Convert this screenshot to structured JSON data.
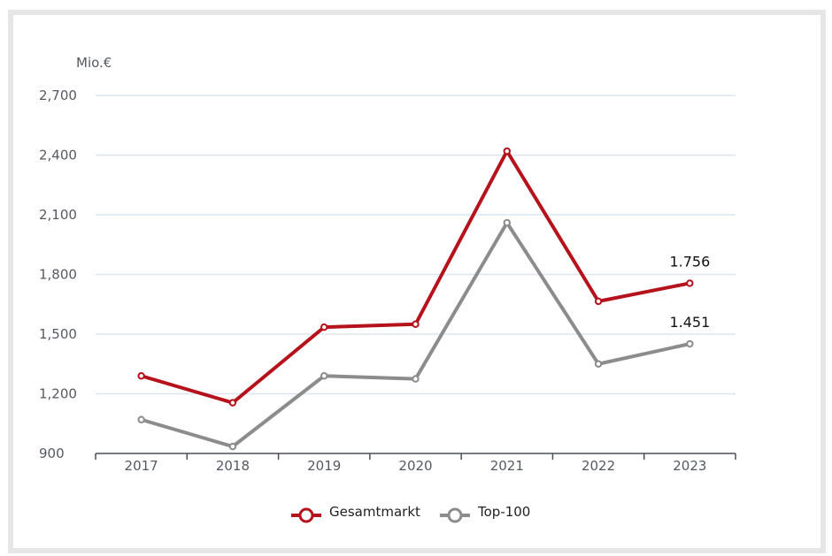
{
  "chart_data": {
    "type": "line",
    "unit_label": "Mio.€",
    "categories": [
      "2017",
      "2018",
      "2019",
      "2020",
      "2021",
      "2022",
      "2023"
    ],
    "ylim": [
      900,
      2700
    ],
    "yticks": [
      900,
      1200,
      1500,
      1800,
      2100,
      2400,
      2700
    ],
    "ytick_labels": [
      "900",
      "1,200",
      "1,500",
      "1,800",
      "2,100",
      "2,400",
      "2,700"
    ],
    "grid": true,
    "legend_position": "bottom-center",
    "series": [
      {
        "name": "Gesamtmarkt",
        "color": "#b5121b",
        "values": [
          1290,
          1155,
          1535,
          1550,
          2420,
          1665,
          1756
        ],
        "end_label": "1.756"
      },
      {
        "name": "Top-100",
        "color": "#8c8c8c",
        "values": [
          1070,
          935,
          1290,
          1275,
          2060,
          1350,
          1451
        ],
        "end_label": "1.451"
      }
    ]
  }
}
